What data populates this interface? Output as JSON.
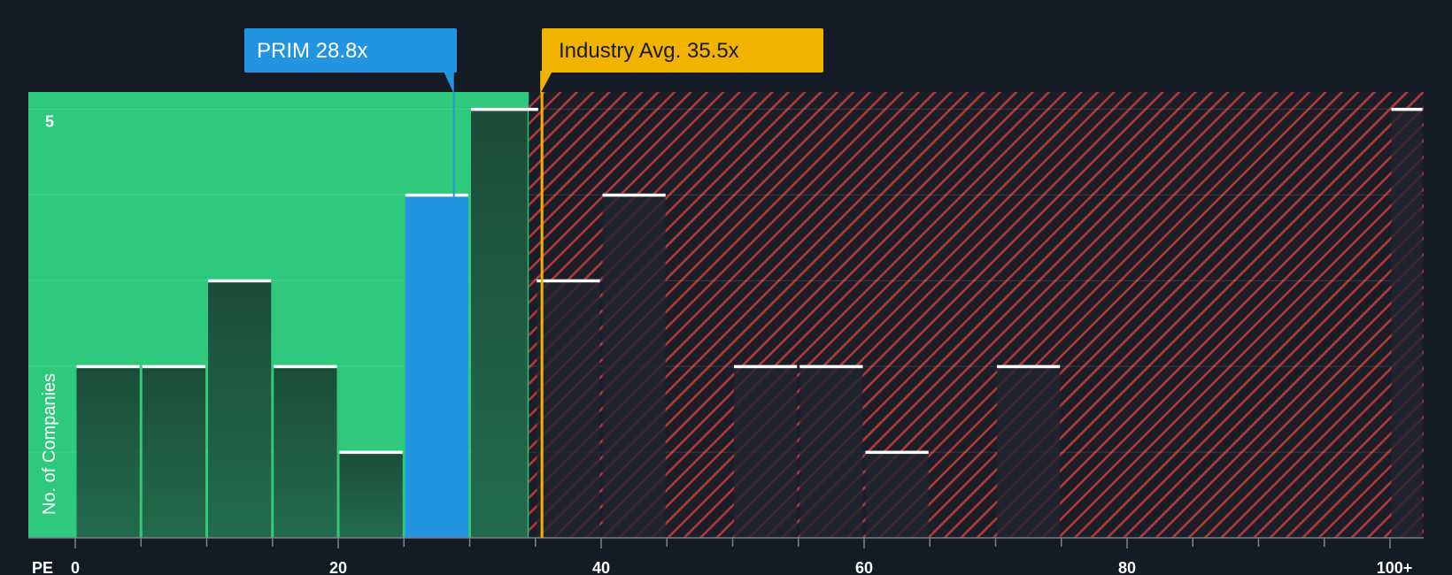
{
  "chart_data": {
    "type": "bar",
    "title": "",
    "xlabel": "PE",
    "ylabel": "No. of Companies",
    "xlim": [
      0,
      103
    ],
    "ylim": [
      0,
      5.2
    ],
    "bin_width": 5,
    "x_ticks": [
      0,
      20,
      40,
      60,
      80,
      100
    ],
    "x_tick_labels": [
      "0",
      "20",
      "40",
      "60",
      "80",
      "100+"
    ],
    "y_ticks": [
      5
    ],
    "y_tick_labels": [
      "5"
    ],
    "bins": [
      {
        "start": 0,
        "value": 2
      },
      {
        "start": 5,
        "value": 2
      },
      {
        "start": 10,
        "value": 3
      },
      {
        "start": 15,
        "value": 2
      },
      {
        "start": 20,
        "value": 1
      },
      {
        "start": 25,
        "value": 4,
        "highlight": true
      },
      {
        "start": 30,
        "value": 5
      },
      {
        "start": 35,
        "value": 3
      },
      {
        "start": 40,
        "value": 4
      },
      {
        "start": 50,
        "value": 2
      },
      {
        "start": 55,
        "value": 2
      },
      {
        "start": 60,
        "value": 1
      },
      {
        "start": 70,
        "value": 2
      },
      {
        "start": 100,
        "value": 5
      }
    ],
    "fair_zone_end": 34.5,
    "company": {
      "label": "PRIM 28.8x",
      "value": 28.8,
      "color": "#2394e0"
    },
    "industry_avg": {
      "label": "Industry Avg. 35.5x",
      "value": 35.5,
      "color": "#f0b400"
    },
    "colors": {
      "fair_zone": "#2ec97c",
      "fair_bar": "#1f5a41",
      "expensive_zone": "#1a1e29",
      "hatch": "#d23b3b",
      "bar_top": "#ffffff"
    }
  }
}
